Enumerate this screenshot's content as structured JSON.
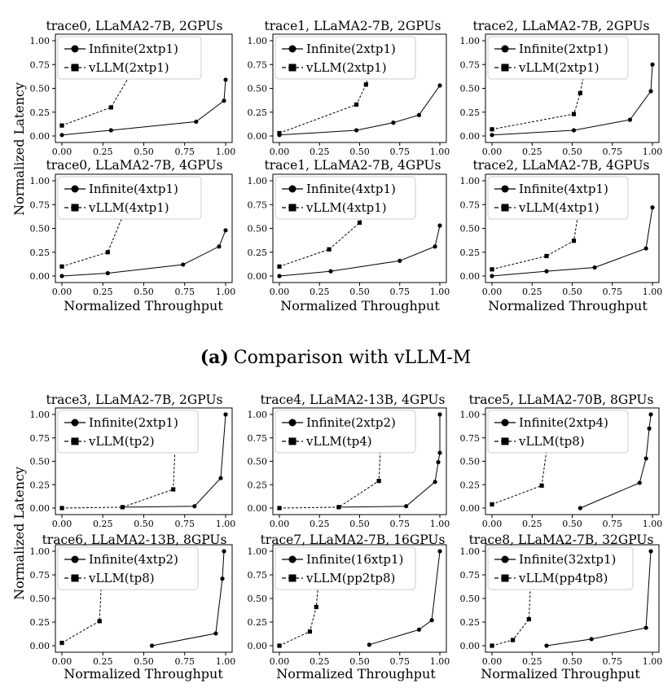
{
  "figure": {
    "caption_label": "(a)",
    "caption_text": "Comparison with vLLM-M",
    "xlabel": "Normalized Throughput",
    "ylabel": "Normalized Latency"
  },
  "chart_data": [
    {
      "type": "line",
      "title": "trace0, LLaMA2-7B, 2GPUs",
      "xlim": [
        0,
        1.0
      ],
      "ylim": [
        0,
        1.0
      ],
      "xticks": [
        "0.00",
        "0.25",
        "0.50",
        "0.75",
        "1.00"
      ],
      "yticks": [
        "0.00",
        "0.25",
        "0.50",
        "0.75",
        "1.00"
      ],
      "series": [
        {
          "name": "Infinite(2xtp1)",
          "marker": "circle",
          "dash": "solid",
          "x": [
            0.0,
            0.3,
            0.82,
            0.99,
            1.0
          ],
          "y": [
            0.01,
            0.06,
            0.15,
            0.37,
            0.59
          ]
        },
        {
          "name": "vLLM(2xtp1)",
          "marker": "square",
          "dash": "dashed",
          "x": [
            0.0,
            0.3,
            0.54
          ],
          "y": [
            0.11,
            0.3,
            1.0
          ]
        }
      ]
    },
    {
      "type": "line",
      "title": "trace1, LLaMA2-7B, 2GPUs",
      "xlim": [
        0,
        1.0
      ],
      "ylim": [
        0,
        1.0
      ],
      "xticks": [
        "0.00",
        "0.25",
        "0.50",
        "0.75",
        "1.00"
      ],
      "yticks": [
        "0.00",
        "0.25",
        "0.50",
        "0.75",
        "1.00"
      ],
      "series": [
        {
          "name": "Infinite(2xtp1)",
          "marker": "circle",
          "dash": "solid",
          "x": [
            0.0,
            0.48,
            0.71,
            0.87,
            1.0
          ],
          "y": [
            0.01,
            0.06,
            0.14,
            0.22,
            0.53
          ]
        },
        {
          "name": "vLLM(2xtp1)",
          "marker": "square",
          "dash": "dashed",
          "x": [
            0.0,
            0.48,
            0.54,
            0.61
          ],
          "y": [
            0.03,
            0.33,
            0.54,
            1.0
          ]
        }
      ]
    },
    {
      "type": "line",
      "title": "trace2, LLaMA2-7B, 2GPUs",
      "xlim": [
        0,
        1.0
      ],
      "ylim": [
        0,
        1.0
      ],
      "xticks": [
        "0.00",
        "0.25",
        "0.50",
        "0.75",
        "1.00"
      ],
      "yticks": [
        "0.00",
        "0.25",
        "0.50",
        "0.75",
        "1.00"
      ],
      "series": [
        {
          "name": "Infinite(2xtp1)",
          "marker": "circle",
          "dash": "solid",
          "x": [
            0.0,
            0.51,
            0.86,
            0.99,
            1.0
          ],
          "y": [
            0.01,
            0.06,
            0.17,
            0.47,
            0.75
          ]
        },
        {
          "name": "vLLM(2xtp1)",
          "marker": "square",
          "dash": "dashed",
          "x": [
            0.0,
            0.51,
            0.55,
            0.61
          ],
          "y": [
            0.07,
            0.23,
            0.45,
            1.0
          ]
        }
      ]
    },
    {
      "type": "line",
      "title": "trace0, LLaMA2-7B, 4GPUs",
      "xlim": [
        0,
        1.0
      ],
      "ylim": [
        0,
        1.0
      ],
      "xticks": [
        "0.00",
        "0.25",
        "0.50",
        "0.75",
        "1.00"
      ],
      "yticks": [
        "0.00",
        "0.25",
        "0.50",
        "0.75",
        "1.00"
      ],
      "series": [
        {
          "name": "Infinite(4xtp1)",
          "marker": "circle",
          "dash": "solid",
          "x": [
            0.0,
            0.28,
            0.74,
            0.96,
            1.0
          ],
          "y": [
            0.0,
            0.03,
            0.12,
            0.31,
            0.48
          ]
        },
        {
          "name": "vLLM(4xtp1)",
          "marker": "square",
          "dash": "dashed",
          "x": [
            0.0,
            0.28,
            0.46
          ],
          "y": [
            0.1,
            0.25,
            1.0
          ]
        }
      ]
    },
    {
      "type": "line",
      "title": "trace1, LLaMA2-7B, 4GPUs",
      "xlim": [
        0,
        1.0
      ],
      "ylim": [
        0,
        1.0
      ],
      "xticks": [
        "0.00",
        "0.25",
        "0.50",
        "0.75",
        "1.00"
      ],
      "yticks": [
        "0.00",
        "0.25",
        "0.50",
        "0.75",
        "1.00"
      ],
      "series": [
        {
          "name": "Infinite(4xtp1)",
          "marker": "circle",
          "dash": "solid",
          "x": [
            0.0,
            0.32,
            0.75,
            0.97,
            1.0
          ],
          "y": [
            0.0,
            0.05,
            0.16,
            0.31,
            0.53
          ]
        },
        {
          "name": "vLLM(4xtp1)",
          "marker": "square",
          "dash": "dashed",
          "x": [
            0.0,
            0.31,
            0.5,
            0.57
          ],
          "y": [
            0.1,
            0.28,
            0.56,
            1.0
          ]
        }
      ]
    },
    {
      "type": "line",
      "title": "trace2, LLaMA2-7B, 4GPUs",
      "xlim": [
        0,
        1.0
      ],
      "ylim": [
        0,
        1.0
      ],
      "xticks": [
        "0.00",
        "0.25",
        "0.50",
        "0.75",
        "1.00"
      ],
      "yticks": [
        "0.00",
        "0.25",
        "0.50",
        "0.75",
        "1.00"
      ],
      "series": [
        {
          "name": "Infinite(4xtp1)",
          "marker": "circle",
          "dash": "solid",
          "x": [
            0.0,
            0.34,
            0.64,
            0.96,
            1.0
          ],
          "y": [
            0.0,
            0.05,
            0.09,
            0.29,
            0.72
          ]
        },
        {
          "name": "vLLM(4xtp1)",
          "marker": "square",
          "dash": "dashed",
          "x": [
            0.0,
            0.34,
            0.51,
            0.57
          ],
          "y": [
            0.07,
            0.21,
            0.37,
            1.0
          ]
        }
      ]
    },
    {
      "type": "line",
      "title": "trace3, LLaMA2-7B, 2GPUs",
      "xlim": [
        0,
        1.0
      ],
      "ylim": [
        0,
        1.0
      ],
      "xticks": [
        "0.00",
        "0.25",
        "0.50",
        "0.75",
        "1.00"
      ],
      "yticks": [
        "0.00",
        "0.25",
        "0.50",
        "0.75",
        "1.00"
      ],
      "series": [
        {
          "name": "Infinite(2xtp1)",
          "marker": "circle",
          "dash": "solid",
          "x": [
            0.37,
            0.81,
            0.97,
            1.0
          ],
          "y": [
            0.01,
            0.02,
            0.32,
            1.0
          ]
        },
        {
          "name": "vLLM(tp2)",
          "marker": "square",
          "dash": "dashed",
          "x": [
            0.0,
            0.37,
            0.68,
            0.7
          ],
          "y": [
            0.0,
            0.01,
            0.2,
            1.0
          ]
        }
      ]
    },
    {
      "type": "line",
      "title": "trace4, LLaMA2-13B, 4GPUs",
      "xlim": [
        0,
        1.0
      ],
      "ylim": [
        0,
        1.0
      ],
      "xticks": [
        "0.00",
        "0.25",
        "0.50",
        "0.75",
        "1.00"
      ],
      "yticks": [
        "0.00",
        "0.25",
        "0.50",
        "0.75",
        "1.00"
      ],
      "series": [
        {
          "name": "Infinite(2xtp2)",
          "marker": "circle",
          "dash": "solid",
          "x": [
            0.37,
            0.79,
            0.97,
            0.99,
            1.0,
            1.0
          ],
          "y": [
            0.01,
            0.02,
            0.28,
            0.49,
            0.59,
            1.0
          ]
        },
        {
          "name": "vLLM(tp4)",
          "marker": "square",
          "dash": "dashed",
          "x": [
            0.0,
            0.37,
            0.62,
            0.64
          ],
          "y": [
            0.0,
            0.01,
            0.29,
            1.0
          ]
        }
      ]
    },
    {
      "type": "line",
      "title": "trace5, LLaMA2-70B, 8GPUs",
      "xlim": [
        0,
        1.0
      ],
      "ylim": [
        0,
        1.0
      ],
      "xticks": [
        "0.00",
        "0.25",
        "0.50",
        "0.75",
        "1.00"
      ],
      "yticks": [
        "0.00",
        "0.25",
        "0.50",
        "0.75",
        "1.00"
      ],
      "series": [
        {
          "name": "Infinite(2xtp4)",
          "marker": "circle",
          "dash": "solid",
          "x": [
            0.55,
            0.92,
            0.96,
            0.98,
            0.99
          ],
          "y": [
            0.0,
            0.27,
            0.53,
            0.85,
            1.0
          ]
        },
        {
          "name": "vLLM(tp8)",
          "marker": "square",
          "dash": "dashed",
          "x": [
            0.0,
            0.31,
            0.37
          ],
          "y": [
            0.04,
            0.24,
            1.0
          ]
        }
      ]
    },
    {
      "type": "line",
      "title": "trace6, LLaMA2-13B, 8GPUs",
      "xlim": [
        0,
        1.0
      ],
      "ylim": [
        0,
        1.0
      ],
      "xticks": [
        "0.00",
        "0.25",
        "0.50",
        "0.75",
        "1.00"
      ],
      "yticks": [
        "0.00",
        "0.25",
        "0.50",
        "0.75",
        "1.00"
      ],
      "series": [
        {
          "name": "Infinite(4xtp2)",
          "marker": "circle",
          "dash": "solid",
          "x": [
            0.55,
            0.94,
            0.98,
            0.99
          ],
          "y": [
            0.0,
            0.13,
            0.71,
            1.0
          ]
        },
        {
          "name": "vLLM(tp8)",
          "marker": "square",
          "dash": "dashed",
          "x": [
            0.0,
            0.23,
            0.25
          ],
          "y": [
            0.03,
            0.26,
            1.0
          ]
        }
      ]
    },
    {
      "type": "line",
      "title": "trace7, LLaMA2-7B, 16GPUs",
      "xlim": [
        0,
        1.0
      ],
      "ylim": [
        0,
        1.0
      ],
      "xticks": [
        "0.00",
        "0.25",
        "0.50",
        "0.75",
        "1.00"
      ],
      "yticks": [
        "0.00",
        "0.25",
        "0.50",
        "0.75",
        "1.00"
      ],
      "series": [
        {
          "name": "Infinite(16xtp1)",
          "marker": "circle",
          "dash": "solid",
          "x": [
            0.56,
            0.87,
            0.95,
            1.0
          ],
          "y": [
            0.01,
            0.17,
            0.27,
            1.0
          ]
        },
        {
          "name": "vLLM(pp2tp8)",
          "marker": "square",
          "dash": "dashed",
          "x": [
            0.0,
            0.19,
            0.23,
            0.26
          ],
          "y": [
            0.0,
            0.15,
            0.41,
            1.0
          ]
        }
      ]
    },
    {
      "type": "line",
      "title": "trace8, LLaMA2-7B, 32GPUs",
      "xlim": [
        0,
        1.0
      ],
      "ylim": [
        0,
        1.0
      ],
      "xticks": [
        "0.00",
        "0.25",
        "0.50",
        "0.75",
        "1.00"
      ],
      "yticks": [
        "0.00",
        "0.25",
        "0.50",
        "0.75",
        "1.00"
      ],
      "series": [
        {
          "name": "Infinite(32xtp1)",
          "marker": "circle",
          "dash": "solid",
          "x": [
            0.34,
            0.62,
            0.96,
            0.99
          ],
          "y": [
            0.0,
            0.07,
            0.19,
            1.0
          ]
        },
        {
          "name": "vLLM(pp4tp8)",
          "marker": "square",
          "dash": "dashed",
          "x": [
            0.0,
            0.13,
            0.23,
            0.25
          ],
          "y": [
            0.0,
            0.06,
            0.28,
            1.0
          ]
        }
      ]
    }
  ]
}
